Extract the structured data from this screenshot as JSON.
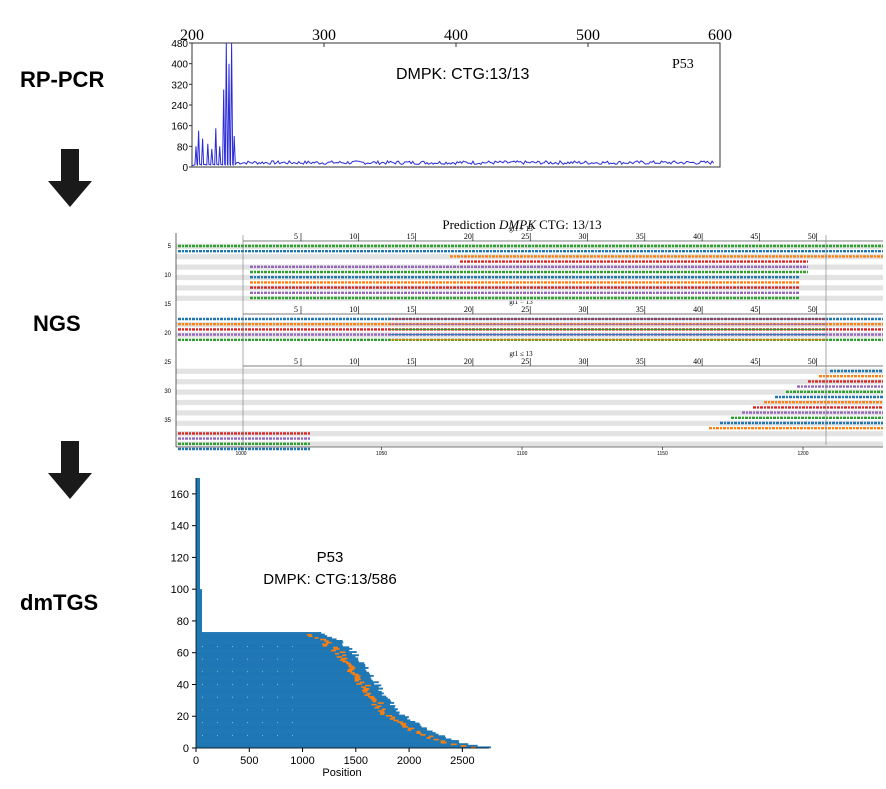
{
  "workflow": {
    "steps": [
      "RP-PCR",
      "NGS",
      "dmTGS"
    ]
  },
  "chart_data": [
    {
      "type": "line",
      "panel": "rp-pcr",
      "annotation": "DMPK: CTG:13/13",
      "sample": "P53",
      "xlim": [
        200,
        600
      ],
      "xticks": [
        200,
        300,
        400,
        500,
        600
      ],
      "ylim": [
        0,
        480
      ],
      "yticks": [
        0,
        80,
        160,
        240,
        320,
        400,
        480
      ],
      "color": "#2b2bd9",
      "peaks": [
        {
          "x": 203,
          "y": 80
        },
        {
          "x": 205,
          "y": 140
        },
        {
          "x": 208,
          "y": 110
        },
        {
          "x": 212,
          "y": 90
        },
        {
          "x": 215,
          "y": 70
        },
        {
          "x": 218,
          "y": 150
        },
        {
          "x": 221,
          "y": 80
        },
        {
          "x": 224,
          "y": 300
        },
        {
          "x": 226,
          "y": 480
        },
        {
          "x": 228,
          "y": 400
        },
        {
          "x": 230,
          "y": 480
        },
        {
          "x": 232,
          "y": 120
        }
      ],
      "baseline": 10
    },
    {
      "type": "table",
      "panel": "ngs",
      "title_prefix": "Prediction",
      "title_gene": "DMPK",
      "title_suffix": "CTG: 13/13",
      "groups": [
        "gt1 > 13",
        "gt1 = 13",
        "gt1 ≤ 13"
      ],
      "repeat_ticks": [
        "5",
        "10",
        "15",
        "20",
        "25",
        "30",
        "35",
        "40",
        "45",
        "50"
      ],
      "row_ticks": [
        "5",
        "10",
        "15",
        "20",
        "25",
        "30",
        "35"
      ],
      "position_ticks": [
        "1000",
        "1050",
        "1100",
        "1150",
        "1200"
      ]
    },
    {
      "type": "heatmap",
      "panel": "dmtgs",
      "sample": "P53",
      "annotation": "DMPK: CTG:13/586",
      "xlabel": "Position",
      "xlim": [
        0,
        2750
      ],
      "xticks": [
        0,
        500,
        1000,
        1500,
        2000,
        2500
      ],
      "ylim": [
        0,
        170
      ],
      "yticks": [
        0,
        20,
        40,
        60,
        80,
        100,
        120,
        140,
        160
      ],
      "colors": {
        "read": "#1f77b4",
        "repeat": "#ff7f0e"
      },
      "reads": 73,
      "envelope": [
        {
          "y": 72,
          "end": 1180
        },
        {
          "y": 68,
          "end": 1330
        },
        {
          "y": 60,
          "end": 1480
        },
        {
          "y": 50,
          "end": 1600
        },
        {
          "y": 40,
          "end": 1700
        },
        {
          "y": 30,
          "end": 1800
        },
        {
          "y": 20,
          "end": 1950
        },
        {
          "y": 10,
          "end": 2200
        },
        {
          "y": 3,
          "end": 2480
        },
        {
          "y": 0,
          "end": 2760
        }
      ]
    }
  ]
}
